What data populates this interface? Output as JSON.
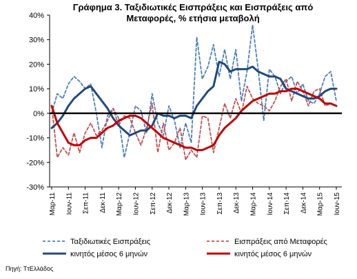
{
  "chart_data": {
    "type": "line",
    "title_line1": "Γράφημα 3. Ταξιδιωτικές Εισπράξεις και Εισπράξεις από",
    "title_line2": "Μεταφορές, % ετήσια μεταβολή",
    "y_ticks": [
      "40%",
      "30%",
      "20%",
      "10%",
      "0%",
      "-10%",
      "-20%",
      "-30%"
    ],
    "ylim": [
      -30,
      40
    ],
    "x_tick_labels": [
      "Μαρ-11",
      "Ιουν-11",
      "Σεπ-11",
      "Δεκ-11",
      "Μαρ-12",
      "Ιουν-12",
      "Σεπ-12",
      "Δεκ-12",
      "Μαρ-13",
      "Ιουν-13",
      "Σεπ-13",
      "Δεκ-13",
      "Μαρ-14",
      "Ιουν-14",
      "Σεπ-14",
      "Δεκ-14",
      "Μαρ-15",
      "Ιουν-15"
    ],
    "months": [
      "Mar-11",
      "Apr-11",
      "May-11",
      "Jun-11",
      "Jul-11",
      "Aug-11",
      "Sep-11",
      "Oct-11",
      "Nov-11",
      "Dec-11",
      "Jan-12",
      "Feb-12",
      "Mar-12",
      "Apr-12",
      "May-12",
      "Jun-12",
      "Jul-12",
      "Aug-12",
      "Sep-12",
      "Oct-12",
      "Nov-12",
      "Dec-12",
      "Jan-13",
      "Feb-13",
      "Mar-13",
      "Apr-13",
      "May-13",
      "Jun-13",
      "Jul-13",
      "Aug-13",
      "Sep-13",
      "Oct-13",
      "Nov-13",
      "Dec-13",
      "Jan-14",
      "Feb-14",
      "Mar-14",
      "Apr-14",
      "May-14",
      "Jun-14",
      "Jul-14",
      "Aug-14",
      "Sep-14",
      "Oct-14",
      "Nov-14",
      "Dec-14",
      "Jan-15",
      "Feb-15",
      "Mar-15",
      "Apr-15",
      "May-15",
      "Jun-15"
    ],
    "series": [
      {
        "name": "Ταξιδιωτικές Εισπράξεις",
        "color": "#4a7ebb",
        "style": "dashed",
        "values": [
          0,
          8,
          6,
          12,
          15,
          13,
          10,
          12,
          0,
          -14,
          -1,
          2,
          -2,
          -18,
          -8,
          3,
          1,
          -8,
          8,
          -4,
          -9,
          3,
          -3,
          -14,
          -4,
          -12,
          31,
          14,
          19,
          28,
          15,
          26,
          14,
          26,
          5,
          17,
          36,
          18,
          -3,
          18,
          15,
          8,
          13,
          15,
          8,
          12,
          5,
          4,
          8,
          15,
          17,
          5
        ]
      },
      {
        "name": "Εισπράξεις από Μεταφορές",
        "color": "#c0504d",
        "style": "dashed",
        "values": [
          3,
          -18,
          -14,
          -17,
          -8,
          -16,
          -8,
          -4,
          -9,
          -7,
          -3,
          2,
          -5,
          -1,
          -2,
          -8,
          -13,
          -6,
          4,
          -16,
          -4,
          -15,
          -12,
          -6,
          -19,
          -15,
          -18,
          -1,
          -2,
          -16,
          -6,
          4,
          -2,
          6,
          0,
          11,
          6,
          4,
          3,
          1,
          5,
          11,
          14,
          5,
          13,
          9,
          3,
          9,
          10,
          3,
          4,
          3
        ]
      },
      {
        "name": "κινητός μέσος 6 μηνών",
        "color": "#1f497d",
        "style": "solid",
        "values": [
          -6,
          -4,
          -1,
          3,
          6,
          8,
          10,
          11,
          8,
          5,
          2,
          -2,
          -5,
          -7,
          -9,
          -8,
          -7,
          -7,
          -5,
          0,
          -1,
          -1,
          -2,
          -1,
          -1,
          -2,
          3,
          6,
          9,
          11,
          21,
          20,
          17,
          18,
          18,
          18,
          19,
          17,
          16,
          15,
          15,
          14,
          10,
          9,
          8,
          7,
          6,
          6,
          7,
          9,
          10,
          10
        ]
      },
      {
        "name": "κινητός μέσος 6 μηνών",
        "color": "#c00000",
        "style": "solid",
        "values": [
          3,
          -4,
          -8,
          -12,
          -13,
          -13,
          -11,
          -10,
          -10,
          -8,
          -6,
          -5,
          -3,
          -2,
          -1,
          -1,
          -2,
          -4,
          -6,
          -8,
          -10,
          -11,
          -12,
          -13,
          -14,
          -14,
          -15,
          -15,
          -14,
          -13,
          -9,
          -6,
          -4,
          -2,
          1,
          3,
          5,
          6,
          7,
          8,
          8,
          9,
          9,
          10,
          10,
          9,
          8,
          7,
          6,
          4,
          4,
          3
        ]
      }
    ]
  },
  "source": "Πηγή: ΤτΕλλάδος"
}
